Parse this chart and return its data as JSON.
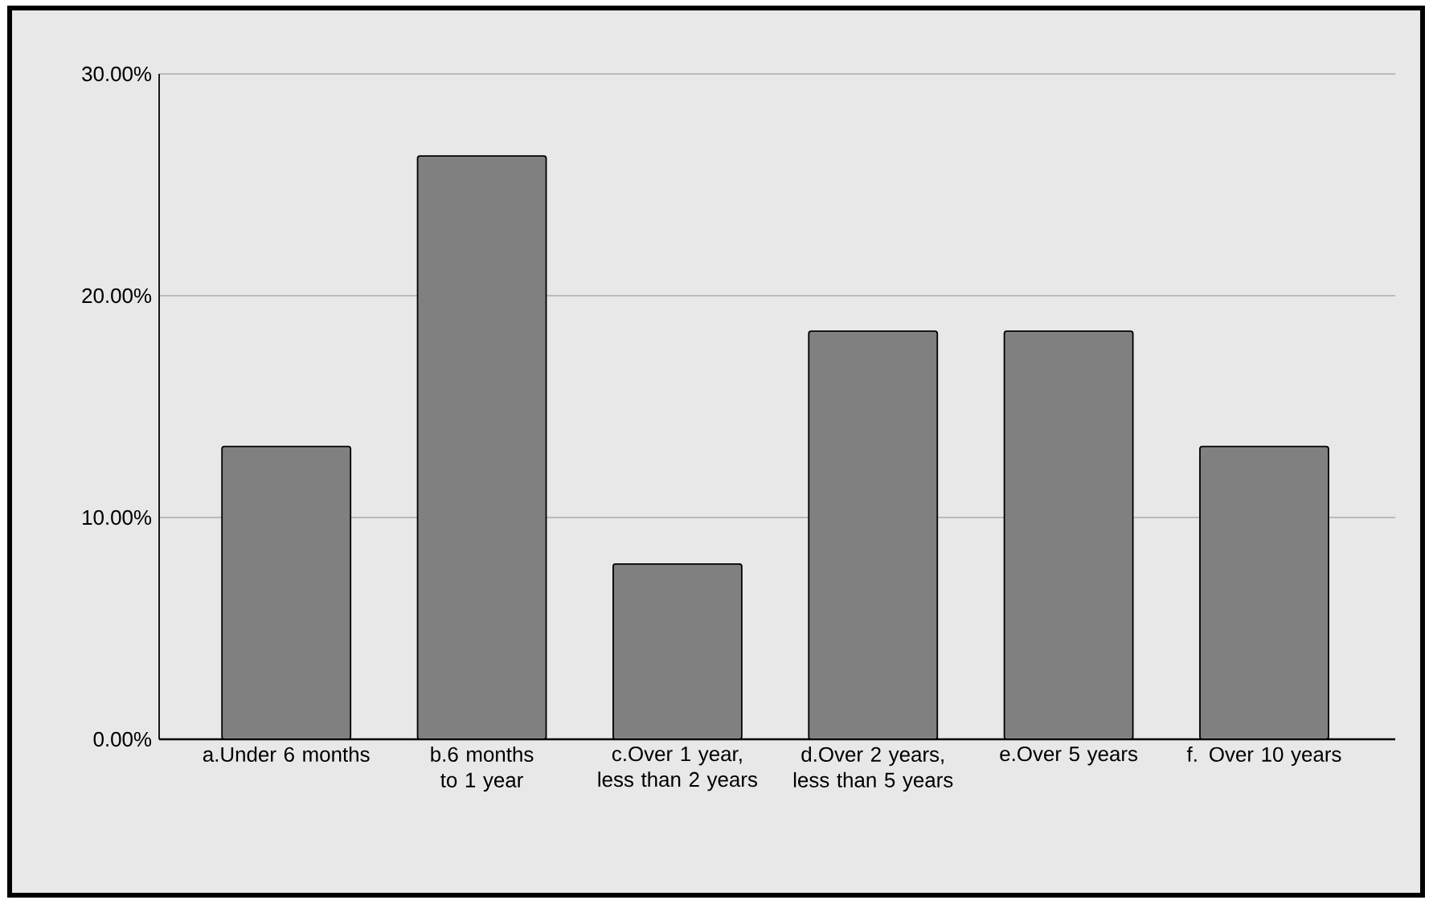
{
  "chart_data": {
    "type": "bar",
    "categories": [
      "a.Under 6 months",
      "b.6 months to 1 year",
      "c.Over 1 year, less than 2 years",
      "d.Over 2 years, less than 5 years",
      "e.Over 5 years",
      "f. Over 10 years"
    ],
    "values": [
      13.2,
      26.3,
      7.9,
      18.4,
      18.4,
      13.2
    ],
    "color": "#808080",
    "ylim": [
      0,
      30
    ],
    "yticks": [
      {
        "value": 0,
        "label": "0.00%"
      },
      {
        "value": 10,
        "label": "10.00%"
      },
      {
        "value": 20,
        "label": "20.00%"
      },
      {
        "value": 30,
        "label": "30.00%"
      }
    ],
    "grid": "y"
  }
}
